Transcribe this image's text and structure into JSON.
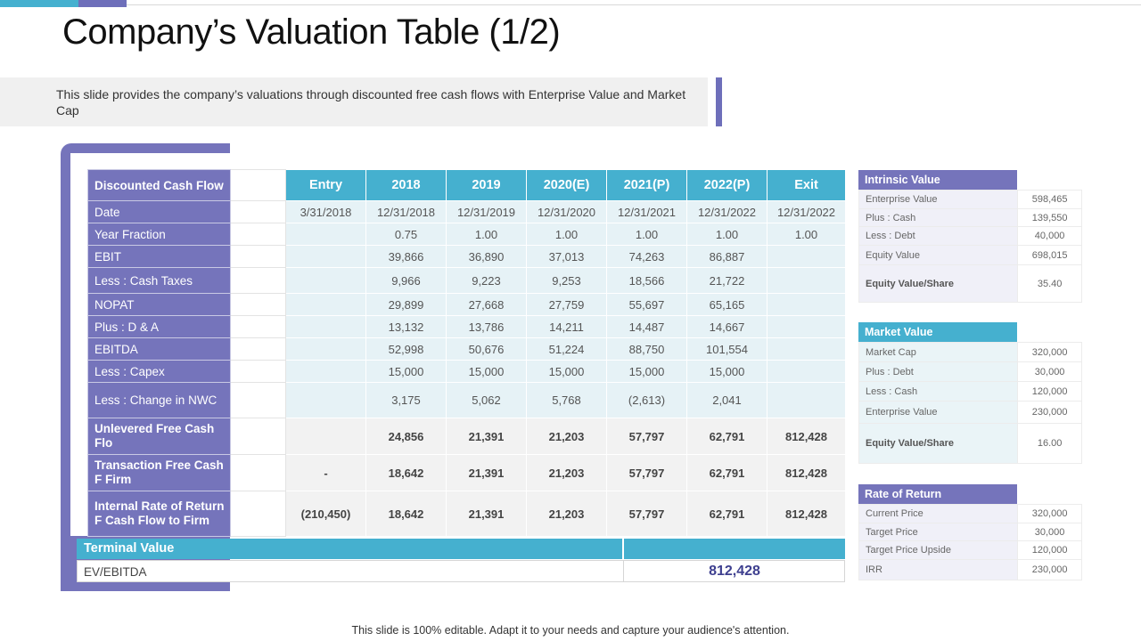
{
  "title": "Company’s Valuation Table (1/2)",
  "description": "This slide provides the company’s valuations through discounted free cash flows with Enterprise Value and Market Cap",
  "footer": "This slide is 100% editable. Adapt it to your needs and capture your audience's attention.",
  "table": {
    "header_label": "Discounted Cash Flow",
    "columns": [
      "Entry",
      "2018",
      "2019",
      "2020(E)",
      "2021(P)",
      "2022(P)",
      "Exit"
    ],
    "rows": [
      {
        "label": "Date",
        "values": [
          "3/31/2018",
          "12/31/2018",
          "12/31/2019",
          "12/31/2020",
          "12/31/2021",
          "12/31/2022",
          "12/31/2022"
        ]
      },
      {
        "label": "Year Fraction",
        "values": [
          "",
          "0.75",
          "1.00",
          "1.00",
          "1.00",
          "1.00",
          "1.00"
        ]
      },
      {
        "label": "EBIT",
        "values": [
          "",
          "39,866",
          "36,890",
          "37,013",
          "74,263",
          "86,887",
          ""
        ]
      },
      {
        "label": "Less : Cash Taxes",
        "values": [
          "",
          "9,966",
          "9,223",
          "9,253",
          "18,566",
          "21,722",
          ""
        ]
      },
      {
        "label": "NOPAT",
        "values": [
          "",
          "29,899",
          "27,668",
          "27,759",
          "55,697",
          "65,165",
          ""
        ]
      },
      {
        "label": "Plus : D & A",
        "values": [
          "",
          "13,132",
          "13,786",
          "14,211",
          "14,487",
          "14,667",
          ""
        ]
      },
      {
        "label": "EBITDA",
        "values": [
          "",
          "52,998",
          "50,676",
          "51,224",
          "88,750",
          "101,554",
          ""
        ]
      },
      {
        "label": "Less : Capex",
        "values": [
          "",
          "15,000",
          "15,000",
          "15,000",
          "15,000",
          "15,000",
          ""
        ]
      },
      {
        "label": "Less : Change in NWC",
        "values": [
          "",
          "3,175",
          "5,062",
          "5,768",
          "(2,613)",
          "2,041",
          ""
        ]
      }
    ],
    "bold_rows": [
      {
        "label": "Unlevered Free Cash Flo",
        "values": [
          "",
          "24,856",
          "21,391",
          "21,203",
          "57,797",
          "62,791",
          "812,428"
        ]
      },
      {
        "label": "Transaction Free Cash F Firm",
        "values": [
          "-",
          "18,642",
          "21,391",
          "21,203",
          "57,797",
          "62,791",
          "812,428"
        ]
      },
      {
        "label": "Internal Rate of Return F Cash Flow to Firm",
        "values": [
          "(210,450)",
          "18,642",
          "21,391",
          "21,203",
          "57,797",
          "62,791",
          "812,428"
        ]
      }
    ],
    "terminal_value_label": "Terminal Value",
    "ev_ebitda_label": "EV/EBITDA",
    "ev_ebitda_value": "812,428"
  },
  "intrinsic_value": {
    "title": "Intrinsic Value",
    "rows": [
      {
        "label": "Enterprise Value",
        "value": "598,465"
      },
      {
        "label": "Plus : Cash",
        "value": "139,550"
      },
      {
        "label": "Less : Debt",
        "value": "40,000"
      },
      {
        "label": "Equity Value",
        "value": "698,015"
      },
      {
        "label": "Equity Value/Share",
        "value": "35.40"
      }
    ]
  },
  "market_value": {
    "title": "Market Value",
    "rows": [
      {
        "label": "Market Cap",
        "value": "320,000"
      },
      {
        "label": "Plus : Debt",
        "value": "30,000"
      },
      {
        "label": "Less : Cash",
        "value": "120,000"
      },
      {
        "label": "Enterprise Value",
        "value": "230,000"
      },
      {
        "label": "Equity Value/Share",
        "value": "16.00"
      }
    ]
  },
  "rate_of_return": {
    "title": "Rate of Return",
    "rows": [
      {
        "label": "Current Price",
        "value": "320,000"
      },
      {
        "label": "Target Price",
        "value": "30,000"
      },
      {
        "label": "Target Price Upside",
        "value": "120,000"
      },
      {
        "label": "IRR",
        "value": "230,000"
      }
    ]
  },
  "colors": {
    "purple": "#7574bb",
    "cyan": "#45b0cf",
    "value_cell": "#e6f2f6",
    "ev_value_text": "#3e3f8f"
  }
}
